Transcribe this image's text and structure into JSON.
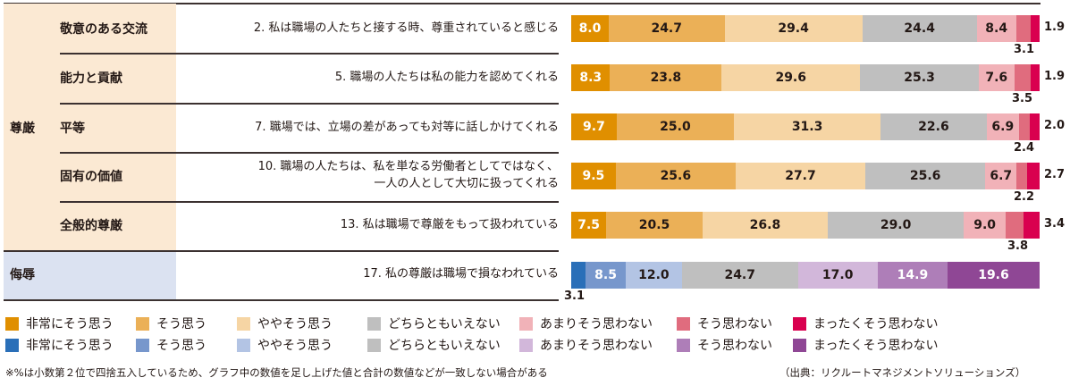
{
  "chart_data": {
    "type": "bar",
    "orientation": "horizontal-stacked-100",
    "title": "",
    "groups": [
      {
        "label": "尊厳",
        "rows": [
          0,
          1,
          2,
          3,
          4
        ]
      },
      {
        "label": "侮辱",
        "rows": [
          5
        ]
      }
    ],
    "categories": [
      "2. 私は職場の人たちと接する時、尊重されていると感じる",
      "5. 職場の人たちは私の能力を認めてくれる",
      "7. 職場では、立場の差があっても対等に話しかけてくれる",
      "10. 職場の人たちは、私を単なる労働者としてではなく、一人の人として大切に扱ってくれる",
      "13. 私は職場で尊厳をもって扱われている",
      "17. 私の尊厳は職場で損なわれている"
    ],
    "series": [
      {
        "name": "非常にそう思う",
        "values": [
          8.0,
          8.3,
          9.7,
          9.5,
          7.5,
          3.1
        ]
      },
      {
        "name": "そう思う",
        "values": [
          24.7,
          23.8,
          25.0,
          25.6,
          20.5,
          8.5
        ]
      },
      {
        "name": "ややそう思う",
        "values": [
          29.4,
          29.6,
          31.3,
          27.7,
          26.8,
          12.0
        ]
      },
      {
        "name": "どちらともいえない",
        "values": [
          24.4,
          25.3,
          22.6,
          25.6,
          29.0,
          24.7
        ]
      },
      {
        "name": "あまりそう思わない",
        "values": [
          8.4,
          7.6,
          6.9,
          6.7,
          9.0,
          17.0
        ]
      },
      {
        "name": "そう思わない",
        "values": [
          3.1,
          3.5,
          2.4,
          2.2,
          3.8,
          14.9
        ]
      },
      {
        "name": "まったくそう思わない",
        "values": [
          1.9,
          1.9,
          2.0,
          2.7,
          3.4,
          19.6
        ]
      }
    ],
    "xlabel": "",
    "ylabel": "",
    "xlim": [
      0,
      100
    ],
    "legend_position": "bottom",
    "grid": false,
    "unit": "%"
  },
  "groups": {
    "dignity": "尊厳",
    "humiliation": "侮辱"
  },
  "rows": [
    {
      "sub": "敬意のある交流",
      "q1": "2. 私は職場の人たちと接する時、尊重されていると感じる",
      "q2": "",
      "values": [
        "8.0",
        "24.7",
        "29.4",
        "24.4",
        "8.4",
        "",
        ""
      ],
      "v": [
        8.0,
        24.7,
        29.4,
        24.4,
        8.4,
        3.1,
        1.9
      ],
      "below": "3.1",
      "right": "1.9"
    },
    {
      "sub": "能力と貢献",
      "q1": "5. 職場の人たちは私の能力を認めてくれる",
      "q2": "",
      "values": [
        "8.3",
        "23.8",
        "29.6",
        "25.3",
        "7.6",
        "",
        ""
      ],
      "v": [
        8.3,
        23.8,
        29.6,
        25.3,
        7.6,
        3.5,
        1.9
      ],
      "below": "3.5",
      "right": "1.9"
    },
    {
      "sub": "平等",
      "q1": "7. 職場では、立場の差があっても対等に話しかけてくれる",
      "q2": "",
      "values": [
        "9.7",
        "25.0",
        "31.3",
        "22.6",
        "6.9",
        "",
        ""
      ],
      "v": [
        9.7,
        25.0,
        31.3,
        22.6,
        6.9,
        2.4,
        2.0
      ],
      "below": "2.4",
      "right": "2.0"
    },
    {
      "sub": "固有の価値",
      "q1": "10. 職場の人たちは、私を単なる労働者としてではなく、",
      "q2": "一人の人として大切に扱ってくれる",
      "values": [
        "9.5",
        "25.6",
        "27.7",
        "25.6",
        "6.7",
        "",
        ""
      ],
      "v": [
        9.5,
        25.6,
        27.7,
        25.6,
        6.7,
        2.2,
        2.7
      ],
      "below": "2.2",
      "right": "2.7"
    },
    {
      "sub": "全般的尊厳",
      "q1": "13. 私は職場で尊厳をもって扱われている",
      "q2": "",
      "values": [
        "7.5",
        "20.5",
        "26.8",
        "29.0",
        "9.0",
        "",
        ""
      ],
      "v": [
        7.5,
        20.5,
        26.8,
        29.0,
        9.0,
        3.8,
        3.4
      ],
      "below": "3.8",
      "right": "3.4"
    },
    {
      "sub": "",
      "q1": "17. 私の尊厳は職場で損なわれている",
      "q2": "",
      "values": [
        "",
        "8.5",
        "12.0",
        "24.7",
        "17.0",
        "14.9",
        "19.6"
      ],
      "v": [
        3.1,
        8.5,
        12.0,
        24.7,
        17.0,
        14.9,
        19.6
      ],
      "below": "3.1",
      "right": ""
    }
  ],
  "colors": {
    "dignity": [
      "#e08f00",
      "#ebb057",
      "#f6d5a4",
      "#bfbfbf",
      "#f1b2b8",
      "#e06c7e",
      "#d9004f"
    ],
    "humiliation": [
      "#2a6fb8",
      "#7797cc",
      "#b3c4e4",
      "#bfbfbf",
      "#d2b7da",
      "#ae7eb8",
      "#8f4795"
    ]
  },
  "legend": {
    "dignity": [
      "非常にそう思う",
      "そう思う",
      "ややそう思う",
      "どちらともいえない",
      "あまりそう思わない",
      "そう思わない",
      "まったくそう思わない"
    ],
    "humiliation": [
      "非常にそう思う",
      "そう思う",
      "ややそう思う",
      "どちらともいえない",
      "あまりそう思わない",
      "そう思わない",
      "まったくそう思わない"
    ]
  },
  "footnote": "※%は小数第２位で四捨五入しているため、グラフ中の数値を足し上げた値と合計の数値などが一致しない場合がある",
  "source": "（出典：リクルートマネジメントソリューションズ）"
}
